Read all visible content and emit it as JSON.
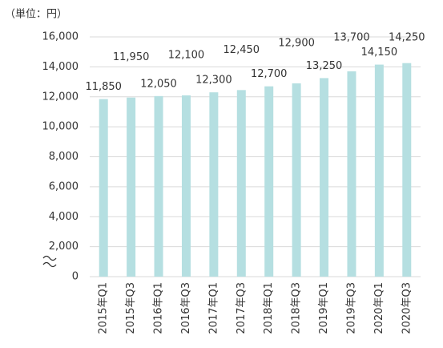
{
  "chart_data": {
    "type": "bar",
    "subtitle": "（単位：円）",
    "categories": [
      "2015年Q1",
      "2015年Q3",
      "2016年Q1",
      "2016年Q3",
      "2017年Q1",
      "2017年Q3",
      "2018年Q1",
      "2018年Q3",
      "2019年Q1",
      "2019年Q3",
      "2020年Q1",
      "2020年Q3"
    ],
    "values": [
      11850,
      11950,
      12050,
      12100,
      12300,
      12450,
      12700,
      12900,
      13250,
      13700,
      14150,
      14250
    ],
    "value_labels": [
      "11,850",
      "11,950",
      "12,050",
      "12,100",
      "12,300",
      "12,450",
      "12,700",
      "12,900",
      "13,250",
      "13,700",
      "14,150",
      "14,250"
    ],
    "color": "#b5dfe1",
    "ylim": [
      0,
      16000
    ],
    "yticks": [
      0,
      {
        "value": 2000,
        "label": "2,000"
      },
      {
        "value": 4000,
        "label": "4,000"
      },
      {
        "value": 6000,
        "label": "6,000"
      },
      {
        "value": 8000,
        "label": "8,000"
      },
      {
        "value": 10000,
        "label": "10,000"
      },
      {
        "value": 12000,
        "label": "12,000"
      },
      {
        "value": 14000,
        "label": "14,000"
      },
      {
        "value": 16000,
        "label": "16,000"
      }
    ],
    "grid": true
  }
}
